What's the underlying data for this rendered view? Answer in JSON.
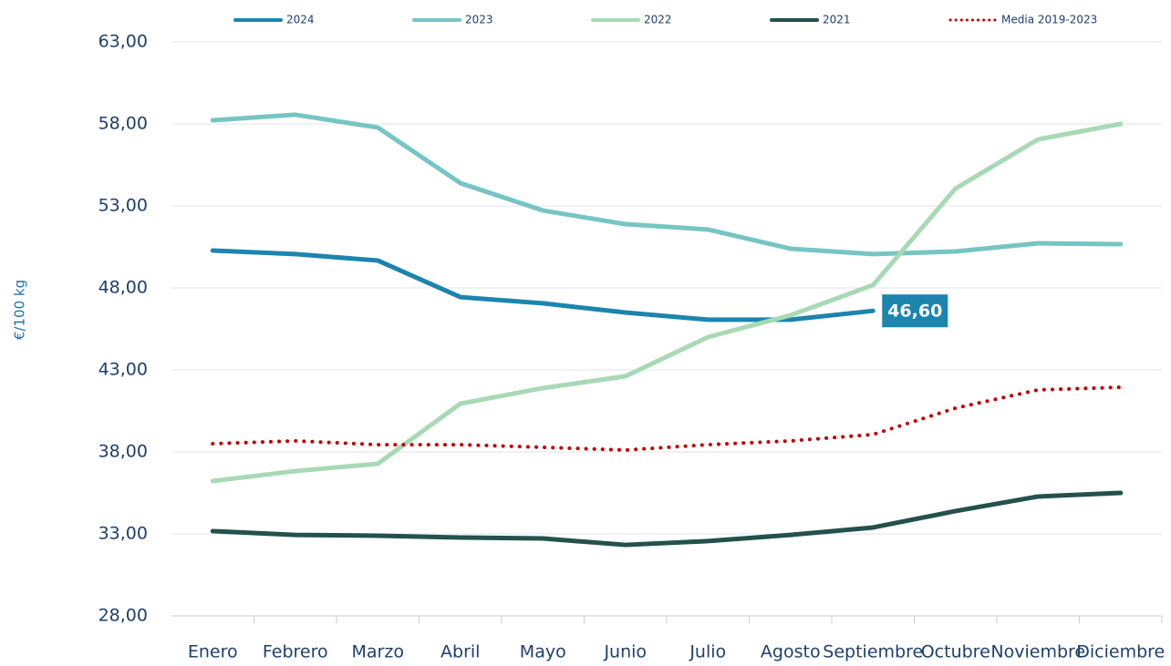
{
  "chart_data": {
    "type": "line",
    "y_label": "€/100 kg",
    "categories": [
      "Enero",
      "Febrero",
      "Marzo",
      "Abril",
      "Mayo",
      "Junio",
      "Julio",
      "Agosto",
      "Septiembre",
      "Octubre",
      "Noviembre",
      "Diciembre"
    ],
    "series": [
      {
        "name": "2024",
        "color": "#1b85ae",
        "values": [
          50.28,
          50.06,
          49.67,
          47.44,
          47.06,
          46.5,
          46.06,
          46.06,
          46.6,
          null,
          null,
          null
        ],
        "value_labels": [
          null,
          null,
          null,
          null,
          null,
          null,
          null,
          null,
          "46,60",
          null,
          null,
          null
        ]
      },
      {
        "name": "2023",
        "color": "#76c5c4",
        "values": [
          58.22,
          58.56,
          57.78,
          54.39,
          52.72,
          51.89,
          51.56,
          50.39,
          50.06,
          50.22,
          50.72,
          50.67
        ]
      },
      {
        "name": "2022",
        "color": "#a8d9b5",
        "values": [
          36.22,
          36.83,
          37.28,
          40.94,
          41.89,
          42.61,
          45.0,
          46.33,
          48.17,
          54.06,
          57.06,
          58.0
        ]
      },
      {
        "name": "2021",
        "color": "#23514b",
        "values": [
          33.17,
          32.94,
          32.89,
          32.78,
          32.72,
          32.33,
          32.56,
          32.94,
          33.39,
          34.39,
          35.28,
          35.5
        ]
      },
      {
        "name": "Media 2019-2023",
        "color": "#c00000",
        "dotted": true,
        "values": [
          38.5,
          38.67,
          38.44,
          38.44,
          38.28,
          38.11,
          38.44,
          38.67,
          39.06,
          40.67,
          41.78,
          41.94
        ]
      }
    ],
    "ylim": [
      28,
      63
    ],
    "yticks": [
      {
        "value": 28,
        "label": "28,00"
      },
      {
        "value": 33,
        "label": "33,00"
      },
      {
        "value": 38,
        "label": "38,00"
      },
      {
        "value": 43,
        "label": "43,00"
      },
      {
        "value": 48,
        "label": "48,00"
      },
      {
        "value": 53,
        "label": "53,00"
      },
      {
        "value": 58,
        "label": "58,00"
      },
      {
        "value": 63,
        "label": "63,00"
      }
    ],
    "grid": true,
    "legend": "top"
  }
}
